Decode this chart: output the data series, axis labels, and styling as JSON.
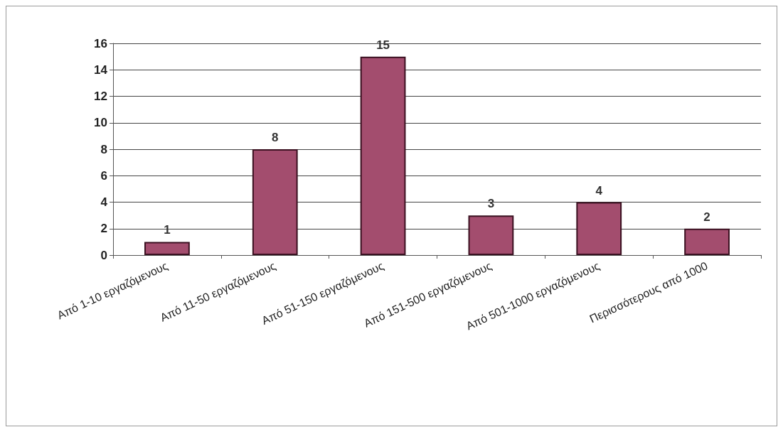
{
  "chart_data": {
    "type": "bar",
    "categories": [
      "Από 1-10 εργαζόμενους",
      "Από 11-50 εργαζόμενους",
      "Από 51-150 εργαζόμενους",
      "Από 151-500 εργαζόμενους",
      "Από 501-1000 εργαζόμενους",
      "Περισσότερους από 1000"
    ],
    "values": [
      1,
      8,
      15,
      3,
      4,
      2
    ],
    "color": "#a34d6e",
    "ylim": [
      0,
      16
    ],
    "yticks": [
      0,
      2,
      4,
      6,
      8,
      10,
      12,
      14,
      16
    ],
    "grid": "y",
    "data_labels": true,
    "annotations": [
      "1"
    ]
  }
}
